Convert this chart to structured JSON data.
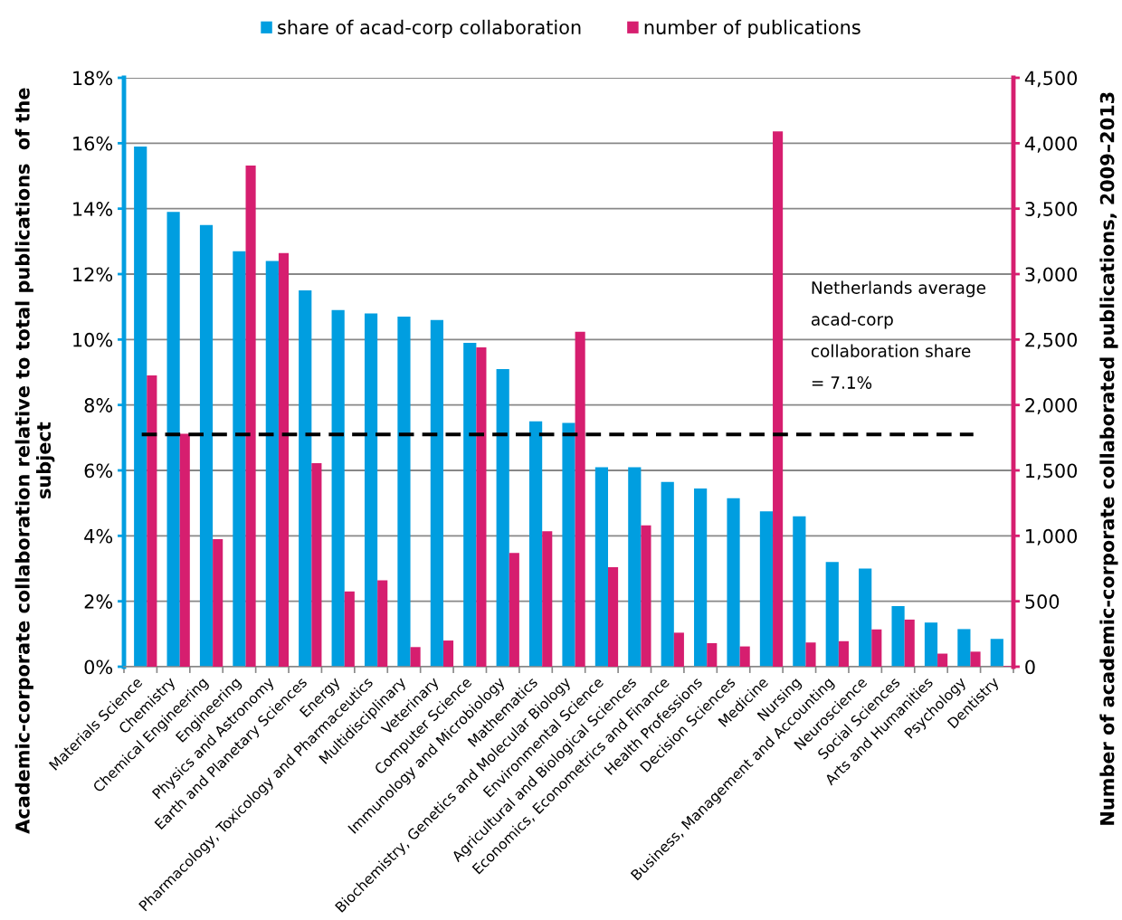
{
  "chart_data": {
    "type": "bar",
    "categories": [
      "Materials Science",
      "Chemistry",
      "Chemical Engineering",
      "Engineering",
      "Physics and Astronomy",
      "Earth and Planetary Sciences",
      "Energy",
      "Pharmacology, Toxicology and Pharmaceutics",
      "Multidisciplinary",
      "Veterinary",
      "Computer Science",
      "Immunology and Microbiology",
      "Mathematics",
      "Biochemistry, Genetics and Molecular Biology",
      "Environmental Science",
      "Agricultural and Biological Sciences",
      "Economics, Econometrics and Finance",
      "Health Professions",
      "Decision Sciences",
      "Medicine",
      "Nursing",
      "Business, Management and Accounting",
      "Neuroscience",
      "Social Sciences",
      "Arts and Humanities",
      "Psychology",
      "Dentistry"
    ],
    "series": [
      {
        "name": "share of acad-corp collaboration",
        "color": "#009ee0",
        "values": [
          15.9,
          13.9,
          13.5,
          12.7,
          12.4,
          11.5,
          10.9,
          10.8,
          10.7,
          10.6,
          9.9,
          9.1,
          7.5,
          7.45,
          6.1,
          6.1,
          5.65,
          5.45,
          5.15,
          4.75,
          4.6,
          3.2,
          3.0,
          1.85,
          1.35,
          1.15,
          0.85
        ]
      },
      {
        "name": "number of publications",
        "color": "#d61e6f",
        "axis": "y2",
        "values": [
          2225,
          1780,
          975,
          3830,
          3160,
          1555,
          575,
          660,
          150,
          200,
          2440,
          870,
          1035,
          2560,
          760,
          1080,
          260,
          180,
          155,
          4090,
          185,
          195,
          285,
          360,
          100,
          115,
          5
        ]
      }
    ],
    "ylabel": "Academic-corporate collaboration relative to total publications  of the\nsubject",
    "y2label": "Number of academic-corporate collaborated publications, 2009–2013",
    "ylim": [
      0,
      18
    ],
    "yticks": [
      {
        "value": 0,
        "label": "0%"
      },
      {
        "value": 2,
        "label": "2%"
      },
      {
        "value": 4,
        "label": "4%"
      },
      {
        "value": 6,
        "label": "6%"
      },
      {
        "value": 8,
        "label": "8%"
      },
      {
        "value": 10,
        "label": "10%"
      },
      {
        "value": 12,
        "label": "12%"
      },
      {
        "value": 14,
        "label": "14%"
      },
      {
        "value": 16,
        "label": "16%"
      },
      {
        "value": 18,
        "label": "18%"
      }
    ],
    "y2lim": [
      0,
      4500
    ],
    "y2ticks": [
      0,
      500,
      {
        "value": 1000,
        "label": "1,000"
      },
      {
        "value": 1500,
        "label": "1,500"
      },
      {
        "value": 2000,
        "label": "2,000"
      },
      {
        "value": 2500,
        "label": "2,500"
      },
      {
        "value": 3000,
        "label": "3,000"
      },
      {
        "value": 3500,
        "label": "3,500"
      },
      {
        "value": 4000,
        "label": "4,000"
      },
      {
        "value": 4500,
        "label": "4,500"
      }
    ],
    "grid": "y",
    "legend": "top",
    "ref_lines": [
      {
        "axis": "y",
        "value": 7.1,
        "label": "Netherlands average\nacad-corp\ncollaboration share\n= 7.1%",
        "color": "#000000",
        "line_style": "dashed"
      }
    ]
  }
}
